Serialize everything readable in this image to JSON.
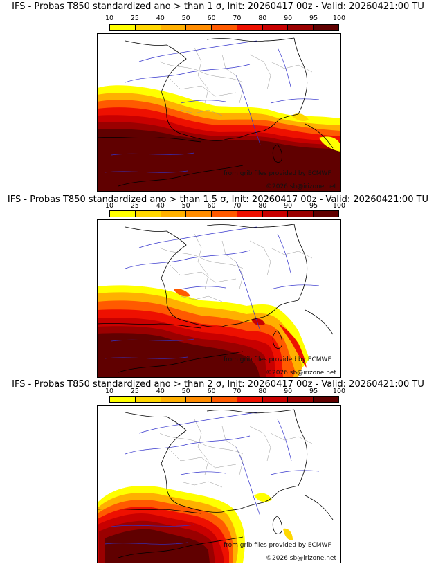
{
  "colors": {
    "bins": [
      "#ffff00",
      "#ffd700",
      "#ffb000",
      "#ff8c00",
      "#ff5a00",
      "#ee1000",
      "#c80000",
      "#9a0000",
      "#600000"
    ],
    "country_borders": "#000000",
    "rivers": "#3333cc",
    "regions": "#999999"
  },
  "colorbar": {
    "ticks": [
      "10",
      "25",
      "40",
      "50",
      "60",
      "70",
      "80",
      "90",
      "95",
      "100"
    ]
  },
  "panels": [
    {
      "title": "IFS - Probas T850  standardized ano > than 1 σ, Init: 20260417 00z - Valid: 20260421:00 TU",
      "credit": "from grib files provided by ECMWF",
      "copyright": "©2026 sb@irizone.net"
    },
    {
      "title": "IFS - Probas T850  standardized ano > than 1.5 σ, Init: 20260417 00z - Valid: 20260421:00 TU",
      "credit": "from grib files provided by ECMWF",
      "copyright": "©2026 sb@irizone.net"
    },
    {
      "title": "IFS - Probas T850  standardized ano > than 2 σ, Init: 20260417 00z - Valid: 20260421:00 TU",
      "credit": "from grib files provided by ECMWF",
      "copyright": "©2026 sb@irizone.net"
    }
  ]
}
